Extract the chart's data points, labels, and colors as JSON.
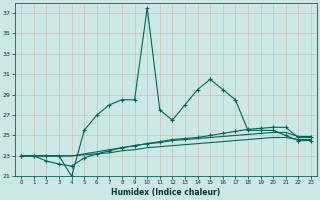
{
  "xlabel": "Humidex (Indice chaleur)",
  "ylabel": "",
  "background_color": "#cce8e4",
  "grid_color": "#b0d8d0",
  "line_color": "#006655",
  "x_values": [
    0,
    1,
    2,
    3,
    4,
    5,
    6,
    7,
    8,
    9,
    10,
    11,
    12,
    13,
    14,
    15,
    16,
    17,
    18,
    19,
    20,
    21,
    22,
    23
  ],
  "y_main": [
    23,
    23,
    23,
    23,
    21,
    25.5,
    27,
    28,
    28.5,
    28.5,
    37.5,
    27.5,
    26.5,
    28.0,
    29.5,
    30.5,
    29.5,
    28.5,
    25.5,
    25.5,
    25.5,
    25.0,
    24.5,
    24.5
  ],
  "y_line2": [
    23,
    23,
    22.5,
    22.2,
    22.0,
    22.8,
    23.2,
    23.5,
    23.8,
    24.0,
    24.2,
    24.4,
    24.6,
    24.7,
    24.8,
    25.0,
    25.2,
    25.4,
    25.6,
    25.7,
    25.8,
    25.8,
    24.8,
    24.8
  ],
  "y_line3": [
    23,
    23,
    23,
    23,
    23,
    23.2,
    23.4,
    23.6,
    23.8,
    24.0,
    24.2,
    24.3,
    24.5,
    24.6,
    24.7,
    24.8,
    24.9,
    25.0,
    25.1,
    25.2,
    25.3,
    25.3,
    24.9,
    24.9
  ],
  "y_line4": [
    23,
    23,
    23,
    23,
    23,
    23.1,
    23.2,
    23.3,
    23.5,
    23.6,
    23.8,
    23.9,
    24.0,
    24.1,
    24.2,
    24.3,
    24.4,
    24.5,
    24.6,
    24.7,
    24.8,
    24.8,
    24.6,
    24.6
  ],
  "ylim": [
    21,
    38
  ],
  "xlim": [
    -0.5,
    23.5
  ],
  "yticks": [
    21,
    23,
    25,
    27,
    29,
    31,
    33,
    35,
    37
  ],
  "xticks": [
    0,
    1,
    2,
    3,
    4,
    5,
    6,
    7,
    8,
    9,
    10,
    11,
    12,
    13,
    14,
    15,
    16,
    17,
    18,
    19,
    20,
    21,
    22,
    23
  ]
}
